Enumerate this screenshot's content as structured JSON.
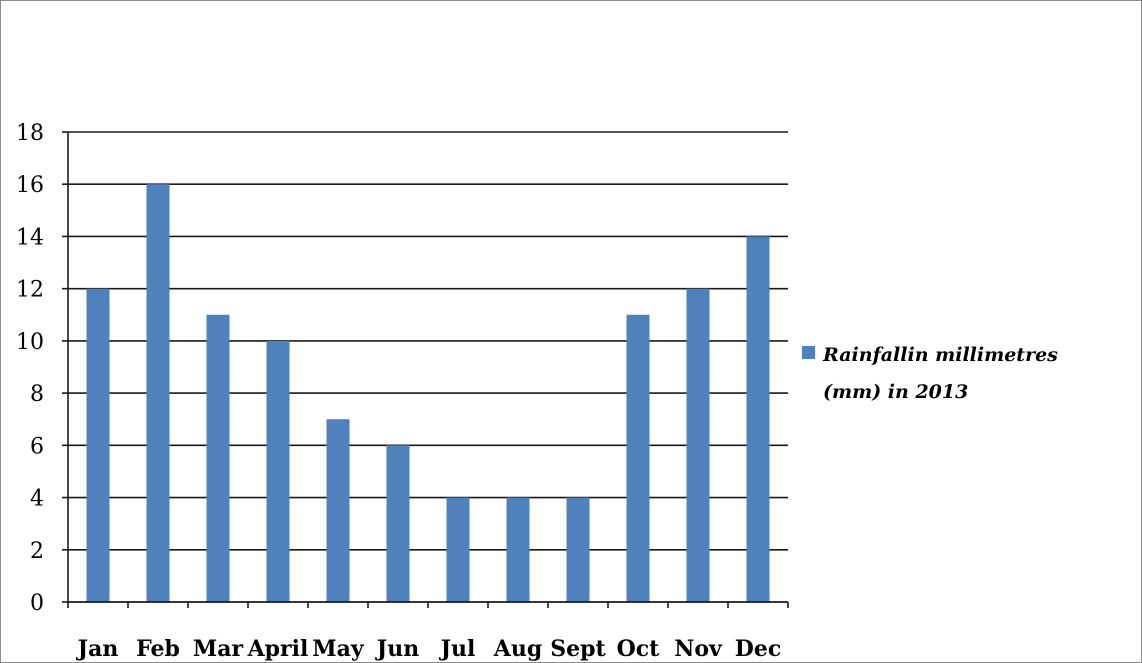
{
  "chart_data": {
    "type": "bar",
    "categories": [
      "Jan",
      "Feb",
      "Mar",
      "April",
      "May",
      "Jun",
      "Jul",
      "Aug",
      "Sept",
      "Oct",
      "Nov",
      "Dec"
    ],
    "series": [
      {
        "name": "Rainfallin millimetres (mm) in 2013",
        "values": [
          12,
          16,
          11,
          10,
          7,
          6,
          4,
          4,
          4,
          11,
          12,
          14
        ],
        "color": "#4f81bd"
      }
    ],
    "ylim": [
      0,
      18
    ],
    "yticks": [
      0,
      2,
      4,
      6,
      8,
      10,
      12,
      14,
      16,
      18
    ],
    "grid": true,
    "legend_position": "right",
    "legend_lines": [
      "Rainfallin millimetres",
      "(mm) in 2013"
    ]
  }
}
